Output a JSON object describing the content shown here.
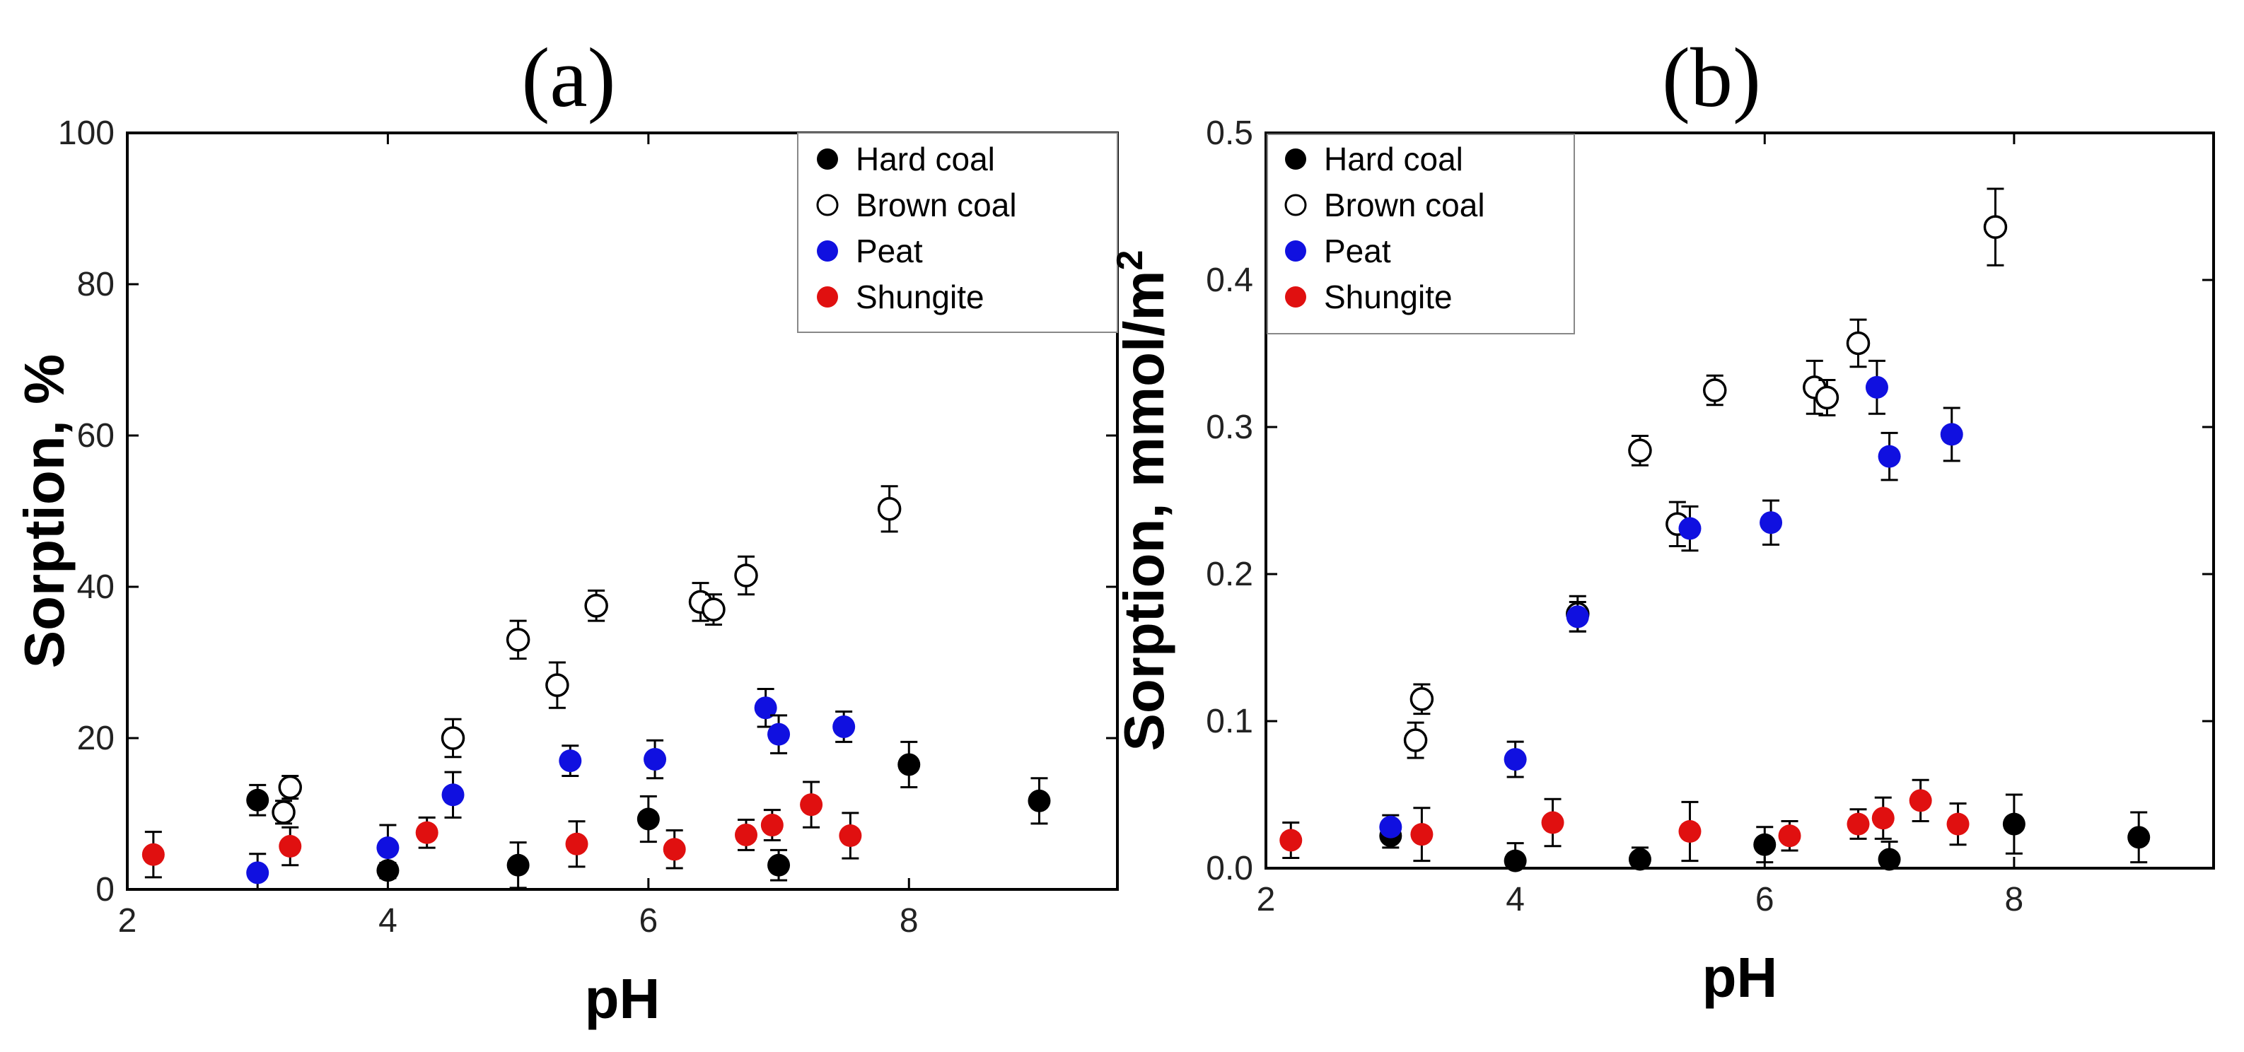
{
  "chart_data": [
    {
      "type": "scatter",
      "panel_label": "(a)",
      "xlabel": "pH",
      "ylabel": "Sorption, %",
      "xlim": [
        2,
        9.6
      ],
      "ylim": [
        0,
        100
      ],
      "xticks": [
        "2",
        "4",
        "6",
        "8"
      ],
      "yticks": [
        "0",
        "20",
        "40",
        "60",
        "80",
        "100"
      ],
      "grid": false,
      "legend_position": "top-right",
      "series": [
        {
          "name": "Hard coal",
          "marker": "filled",
          "color": "#000000",
          "points": [
            {
              "x": 3.0,
              "y": 11.8,
              "err": 2.0
            },
            {
              "x": 4.0,
              "y": 2.5,
              "err": 1.0
            },
            {
              "x": 5.0,
              "y": 3.2,
              "err": 3.0
            },
            {
              "x": 6.0,
              "y": 9.3,
              "err": 3.0
            },
            {
              "x": 7.0,
              "y": 3.2,
              "err": 2.0
            },
            {
              "x": 8.0,
              "y": 16.5,
              "err": 3.0
            },
            {
              "x": 9.0,
              "y": 11.7,
              "err": 3.0
            }
          ]
        },
        {
          "name": "Brown coal",
          "marker": "open",
          "color": "#000000",
          "points": [
            {
              "x": 3.2,
              "y": 10.2,
              "err": 1.5
            },
            {
              "x": 3.25,
              "y": 13.5,
              "err": 1.5
            },
            {
              "x": 4.5,
              "y": 20.0,
              "err": 2.5
            },
            {
              "x": 5.0,
              "y": 33.0,
              "err": 2.5
            },
            {
              "x": 5.3,
              "y": 27.0,
              "err": 3.0
            },
            {
              "x": 5.6,
              "y": 37.5,
              "err": 2.0
            },
            {
              "x": 6.4,
              "y": 38.0,
              "err": 2.5
            },
            {
              "x": 6.5,
              "y": 37.0,
              "err": 2.0
            },
            {
              "x": 6.75,
              "y": 41.5,
              "err": 2.5
            },
            {
              "x": 7.85,
              "y": 50.3,
              "err": 3.0
            }
          ]
        },
        {
          "name": "Peat",
          "marker": "filled",
          "color": "#1010e0",
          "points": [
            {
              "x": 3.0,
              "y": 2.2,
              "err": 2.5
            },
            {
              "x": 4.0,
              "y": 5.5,
              "err": 3.0
            },
            {
              "x": 4.5,
              "y": 12.5,
              "err": 3.0
            },
            {
              "x": 5.4,
              "y": 17.0,
              "err": 2.0
            },
            {
              "x": 6.05,
              "y": 17.2,
              "err": 2.5
            },
            {
              "x": 6.9,
              "y": 24.0,
              "err": 2.5
            },
            {
              "x": 7.0,
              "y": 20.5,
              "err": 2.5
            },
            {
              "x": 7.5,
              "y": 21.5,
              "err": 2.0
            }
          ]
        },
        {
          "name": "Shungite",
          "marker": "filled",
          "color": "#e01010",
          "points": [
            {
              "x": 2.2,
              "y": 4.6,
              "err": 3.0
            },
            {
              "x": 3.25,
              "y": 5.7,
              "err": 2.5
            },
            {
              "x": 4.3,
              "y": 7.5,
              "err": 2.0
            },
            {
              "x": 5.45,
              "y": 6.0,
              "err": 3.0
            },
            {
              "x": 6.2,
              "y": 5.3,
              "err": 2.5
            },
            {
              "x": 6.75,
              "y": 7.2,
              "err": 2.0
            },
            {
              "x": 6.95,
              "y": 8.5,
              "err": 2.0
            },
            {
              "x": 7.25,
              "y": 11.2,
              "err": 3.0
            },
            {
              "x": 7.55,
              "y": 7.1,
              "err": 3.0
            }
          ]
        }
      ]
    },
    {
      "type": "scatter",
      "panel_label": "(b)",
      "xlabel": "pH",
      "ylabel": "Sorption, mmol/m",
      "ylabel_superscript": "2",
      "xlim": [
        2,
        9.6
      ],
      "ylim": [
        0,
        0.5
      ],
      "xticks": [
        "2",
        "4",
        "6",
        "8"
      ],
      "yticks": [
        "0.0",
        "0.1",
        "0.2",
        "0.3",
        "0.4",
        "0.5"
      ],
      "grid": false,
      "legend_position": "top-left",
      "series": [
        {
          "name": "Hard coal",
          "marker": "filled",
          "color": "#000000",
          "points": [
            {
              "x": 3.0,
              "y": 0.022,
              "err": 0.008
            },
            {
              "x": 4.0,
              "y": 0.005,
              "err": 0.012
            },
            {
              "x": 5.0,
              "y": 0.006,
              "err": 0.008
            },
            {
              "x": 6.0,
              "y": 0.016,
              "err": 0.012
            },
            {
              "x": 7.0,
              "y": 0.006,
              "err": 0.012
            },
            {
              "x": 8.0,
              "y": 0.03,
              "err": 0.02
            },
            {
              "x": 9.0,
              "y": 0.021,
              "err": 0.017
            }
          ]
        },
        {
          "name": "Brown coal",
          "marker": "open",
          "color": "#000000",
          "points": [
            {
              "x": 3.2,
              "y": 0.087,
              "err": 0.012
            },
            {
              "x": 3.25,
              "y": 0.115,
              "err": 0.01
            },
            {
              "x": 4.5,
              "y": 0.173,
              "err": 0.012
            },
            {
              "x": 5.0,
              "y": 0.284,
              "err": 0.01
            },
            {
              "x": 5.3,
              "y": 0.234,
              "err": 0.015
            },
            {
              "x": 5.6,
              "y": 0.325,
              "err": 0.01
            },
            {
              "x": 6.4,
              "y": 0.327,
              "err": 0.018
            },
            {
              "x": 6.5,
              "y": 0.32,
              "err": 0.012
            },
            {
              "x": 6.75,
              "y": 0.357,
              "err": 0.016
            },
            {
              "x": 7.85,
              "y": 0.436,
              "err": 0.026
            }
          ]
        },
        {
          "name": "Peat",
          "marker": "filled",
          "color": "#1010e0",
          "points": [
            {
              "x": 3.0,
              "y": 0.028,
              "err": 0.008
            },
            {
              "x": 4.0,
              "y": 0.074,
              "err": 0.012
            },
            {
              "x": 4.5,
              "y": 0.171,
              "err": 0.01
            },
            {
              "x": 5.4,
              "y": 0.231,
              "err": 0.015
            },
            {
              "x": 6.05,
              "y": 0.235,
              "err": 0.015
            },
            {
              "x": 6.9,
              "y": 0.327,
              "err": 0.018
            },
            {
              "x": 7.0,
              "y": 0.28,
              "err": 0.016
            },
            {
              "x": 7.5,
              "y": 0.295,
              "err": 0.018
            }
          ]
        },
        {
          "name": "Shungite",
          "marker": "filled",
          "color": "#e01010",
          "points": [
            {
              "x": 2.2,
              "y": 0.019,
              "err": 0.012
            },
            {
              "x": 3.25,
              "y": 0.023,
              "err": 0.018
            },
            {
              "x": 4.3,
              "y": 0.031,
              "err": 0.016
            },
            {
              "x": 5.4,
              "y": 0.025,
              "err": 0.02
            },
            {
              "x": 6.2,
              "y": 0.022,
              "err": 0.01
            },
            {
              "x": 6.75,
              "y": 0.03,
              "err": 0.01
            },
            {
              "x": 6.95,
              "y": 0.034,
              "err": 0.014
            },
            {
              "x": 7.25,
              "y": 0.046,
              "err": 0.014
            },
            {
              "x": 7.55,
              "y": 0.03,
              "err": 0.014
            }
          ]
        }
      ]
    }
  ]
}
